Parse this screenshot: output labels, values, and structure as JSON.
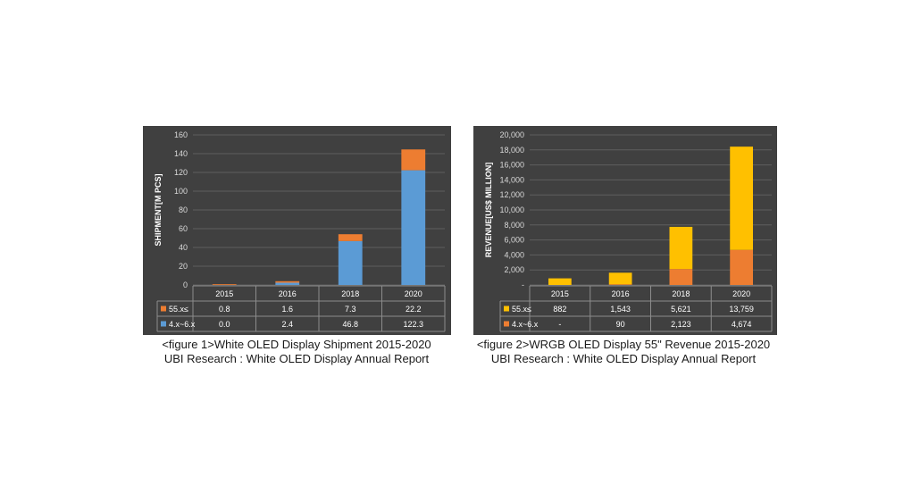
{
  "chart_data": [
    {
      "type": "bar",
      "stacked": true,
      "ylabel": "SHIPMENT[M PCS]",
      "ylim": [
        0,
        160
      ],
      "yticks": [
        0,
        20,
        40,
        60,
        80,
        100,
        120,
        140,
        160
      ],
      "ytick_labels": [
        "0",
        "20",
        "40",
        "60",
        "80",
        "100",
        "120",
        "140",
        "160"
      ],
      "categories": [
        "2015",
        "2016",
        "2018",
        "2020"
      ],
      "grid": true,
      "data_table": true,
      "series": [
        {
          "name": "4.x~6.x",
          "color": "#5b9bd5",
          "values": [
            0.0,
            2.4,
            46.8,
            122.3
          ],
          "labels": [
            "0.0",
            "2.4",
            "46.8",
            "122.3"
          ]
        },
        {
          "name": "55.x≤",
          "color": "#ed7d31",
          "values": [
            0.8,
            1.6,
            7.3,
            22.2
          ],
          "labels": [
            "0.8",
            "1.6",
            "7.3",
            "22.2"
          ]
        }
      ],
      "table_order": [
        1,
        0
      ]
    },
    {
      "type": "bar",
      "stacked": true,
      "ylabel": "REVENUE[US$ MILLION]",
      "ylim": [
        0,
        20000
      ],
      "yticks": [
        0,
        2000,
        4000,
        6000,
        8000,
        10000,
        12000,
        14000,
        16000,
        18000,
        20000
      ],
      "ytick_labels": [
        "-",
        "2,000",
        "4,000",
        "6,000",
        "8,000",
        "10,000",
        "12,000",
        "14,000",
        "16,000",
        "18,000",
        "20,000"
      ],
      "categories": [
        "2015",
        "2016",
        "2018",
        "2020"
      ],
      "grid": true,
      "data_table": true,
      "series": [
        {
          "name": "4.x~6.x",
          "color": "#ed7d31",
          "values": [
            0,
            90,
            2123,
            4674
          ],
          "labels": [
            "-",
            "90",
            "2,123",
            "4,674"
          ]
        },
        {
          "name": "55.x≤",
          "color": "#ffc000",
          "values": [
            882,
            1543,
            5621,
            13759
          ],
          "labels": [
            "882",
            "1,543",
            "5,621",
            "13,759"
          ]
        }
      ],
      "table_order": [
        1,
        0
      ]
    }
  ],
  "captions": [
    {
      "line1": "<figure 1>White OLED Display Shipment 2015-2020",
      "line2": "UBI Research : White OLED Display Annual Report"
    },
    {
      "line1": "<figure 2>WRGB OLED Display 55\" Revenue 2015-2020",
      "line2": "UBI Research : White OLED Display Annual Report"
    }
  ]
}
